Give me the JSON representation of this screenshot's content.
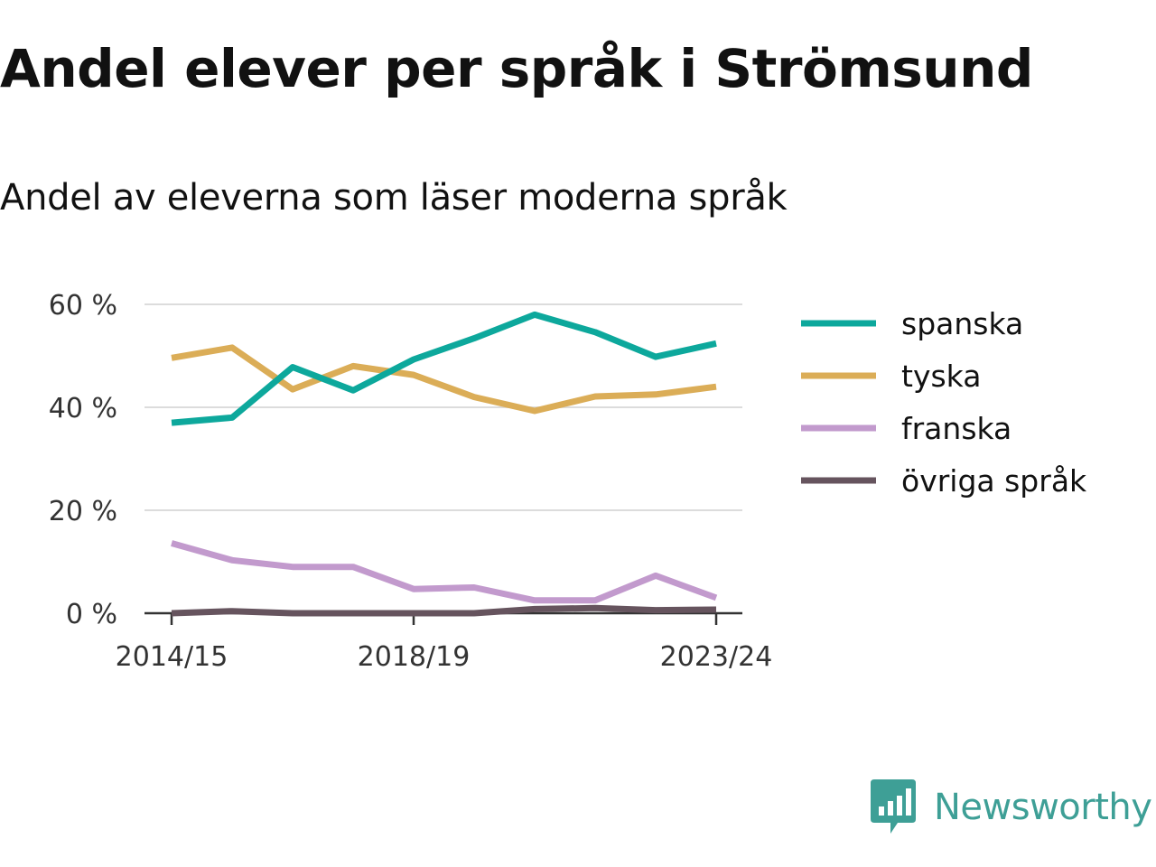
{
  "chart_data": {
    "type": "line",
    "title": "Andel elever per språk i Strömsund",
    "subtitle": "Andel av eleverna som läser moderna språk",
    "xlabel": "",
    "ylabel": "",
    "x": [
      "2014/15",
      "2015/16",
      "2016/17",
      "2017/18",
      "2018/19",
      "2019/20",
      "2020/21",
      "2021/22",
      "2022/23",
      "2023/24"
    ],
    "x_tick_labels": [
      "2014/15",
      "2018/19",
      "2023/24"
    ],
    "y_ticks": [
      0,
      20,
      40,
      60
    ],
    "y_tick_labels": [
      "0 %",
      "20 %",
      "40 %",
      "60 %"
    ],
    "ylim": [
      0,
      60
    ],
    "grid": "horizontal",
    "legend_position": "right",
    "series": [
      {
        "name": "spanska",
        "color": "#0da89c",
        "values": [
          37.0,
          38.0,
          47.8,
          43.3,
          49.3,
          53.4,
          58.0,
          54.6,
          49.8,
          52.4
        ]
      },
      {
        "name": "tyska",
        "color": "#dbad57",
        "values": [
          49.6,
          51.6,
          43.5,
          48.0,
          46.3,
          42.0,
          39.3,
          42.1,
          42.5,
          44.0
        ]
      },
      {
        "name": "franska",
        "color": "#c29acd",
        "values": [
          13.6,
          10.3,
          9.0,
          9.0,
          4.7,
          5.0,
          2.5,
          2.5,
          7.3,
          3.0
        ]
      },
      {
        "name": "övriga språk",
        "color": "#66545e",
        "values": [
          0.0,
          0.4,
          0.0,
          0.0,
          0.0,
          0.0,
          0.8,
          1.0,
          0.6,
          0.7
        ]
      }
    ]
  },
  "brand": {
    "name": "Newsworthy",
    "color": "#3e9f96",
    "icon": "newsworthy-logo-icon"
  }
}
